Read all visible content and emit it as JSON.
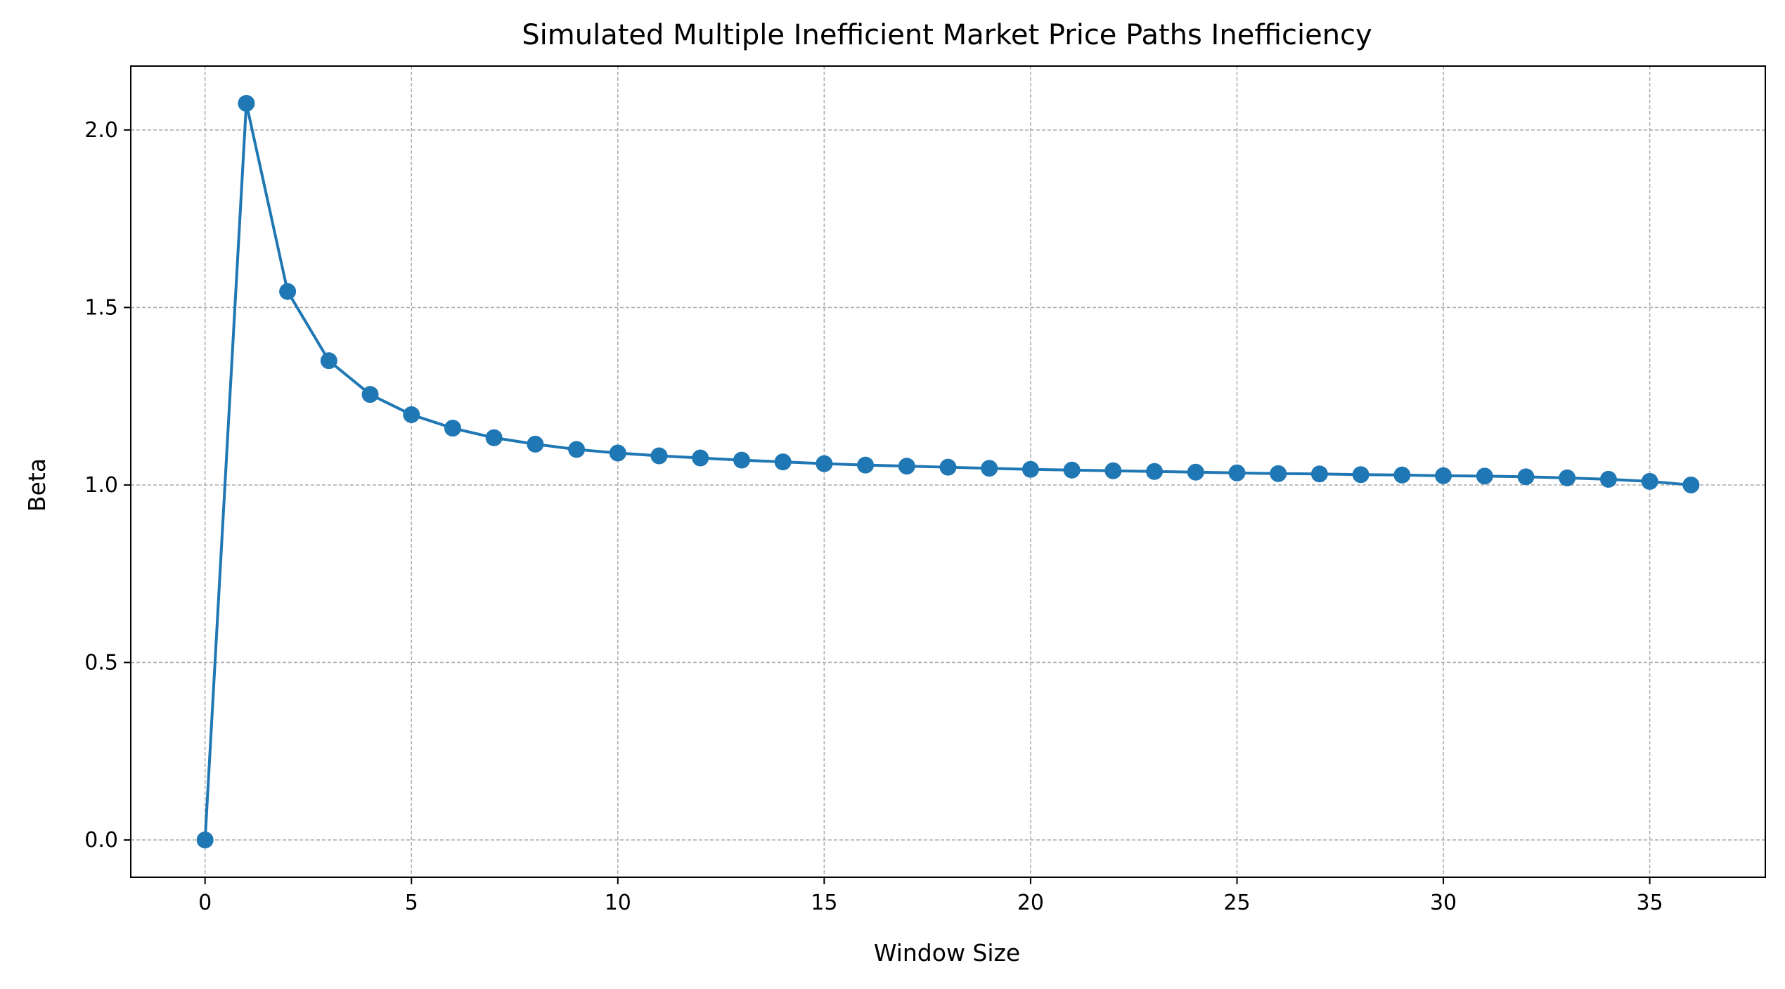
{
  "chart_data": {
    "type": "line",
    "title": "Simulated Multiple Inefficient Market Price Paths Inefficiency",
    "xlabel": "Window Size",
    "ylabel": "Beta",
    "xlim": [
      -1.8,
      37.8
    ],
    "ylim": [
      -0.105,
      2.18
    ],
    "xticks": [
      0,
      5,
      10,
      15,
      20,
      25,
      30,
      35
    ],
    "yticks": [
      0.0,
      0.5,
      1.0,
      1.5,
      2.0
    ],
    "xtick_labels": [
      "0",
      "5",
      "10",
      "15",
      "20",
      "25",
      "30",
      "35"
    ],
    "ytick_labels": [
      "0.0",
      "0.5",
      "1.0",
      "1.5",
      "2.0"
    ],
    "grid": true,
    "marker": "circle",
    "color": "#1f77b4",
    "series": [
      {
        "x": [
          0,
          1,
          2,
          3,
          4,
          5,
          6,
          7,
          8,
          9,
          10,
          11,
          12,
          13,
          14,
          15,
          16,
          17,
          18,
          19,
          20,
          21,
          22,
          23,
          24,
          25,
          26,
          27,
          28,
          29,
          30,
          31,
          32,
          33,
          34,
          35,
          36
        ],
        "values": [
          0.0,
          2.075,
          1.545,
          1.35,
          1.255,
          1.198,
          1.16,
          1.133,
          1.115,
          1.1,
          1.09,
          1.082,
          1.076,
          1.07,
          1.065,
          1.06,
          1.056,
          1.053,
          1.05,
          1.047,
          1.044,
          1.042,
          1.04,
          1.038,
          1.036,
          1.034,
          1.032,
          1.031,
          1.029,
          1.028,
          1.026,
          1.025,
          1.023,
          1.02,
          1.016,
          1.01,
          1.0
        ]
      }
    ]
  }
}
